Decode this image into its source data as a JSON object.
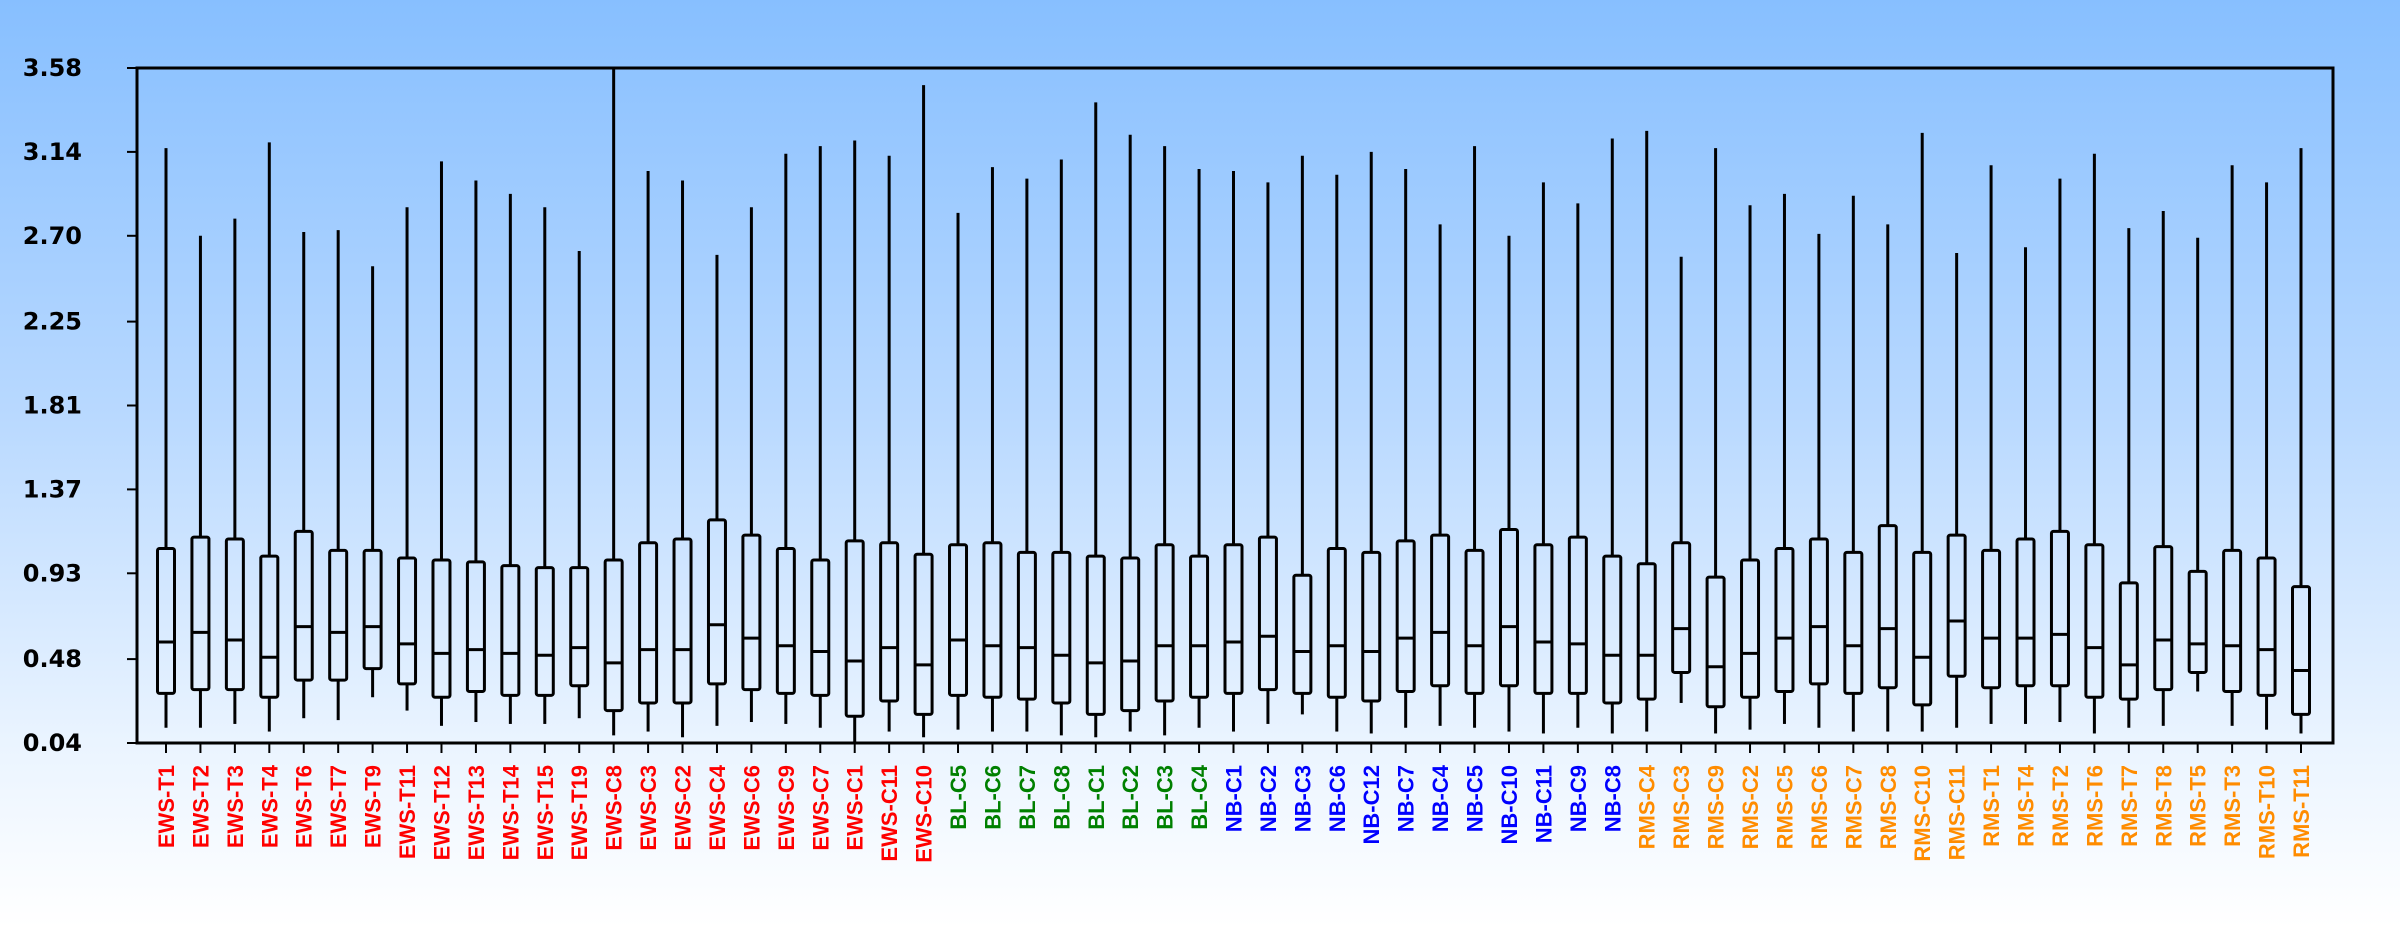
{
  "chart_data": {
    "type": "boxplot",
    "title": "",
    "xlabel": "",
    "ylabel": "",
    "ylim": [
      0.04,
      3.58
    ],
    "yticks": [
      "0.04",
      "0.48",
      "0.93",
      "1.37",
      "1.81",
      "2.25",
      "2.70",
      "3.14",
      "3.58"
    ],
    "grid": false,
    "group_colors": {
      "EWS": "#ff0000",
      "BL": "#008000",
      "NB": "#0000ff",
      "RMS": "#ff8c00"
    },
    "boxes": [
      {
        "label": "EWS-T1",
        "group": "EWS",
        "min": 0.12,
        "q1": 0.3,
        "median": 0.57,
        "q3": 1.06,
        "max": 3.16
      },
      {
        "label": "EWS-T2",
        "group": "EWS",
        "min": 0.12,
        "q1": 0.32,
        "median": 0.62,
        "q3": 1.12,
        "max": 2.7
      },
      {
        "label": "EWS-T3",
        "group": "EWS",
        "min": 0.14,
        "q1": 0.32,
        "median": 0.58,
        "q3": 1.11,
        "max": 2.79
      },
      {
        "label": "EWS-T4",
        "group": "EWS",
        "min": 0.1,
        "q1": 0.28,
        "median": 0.49,
        "q3": 1.02,
        "max": 3.19
      },
      {
        "label": "EWS-T6",
        "group": "EWS",
        "min": 0.17,
        "q1": 0.37,
        "median": 0.65,
        "q3": 1.15,
        "max": 2.72
      },
      {
        "label": "EWS-T7",
        "group": "EWS",
        "min": 0.16,
        "q1": 0.37,
        "median": 0.62,
        "q3": 1.05,
        "max": 2.73
      },
      {
        "label": "EWS-T9",
        "group": "EWS",
        "min": 0.28,
        "q1": 0.43,
        "median": 0.65,
        "q3": 1.05,
        "max": 2.54
      },
      {
        "label": "EWS-T11",
        "group": "EWS",
        "min": 0.21,
        "q1": 0.35,
        "median": 0.56,
        "q3": 1.01,
        "max": 2.85
      },
      {
        "label": "EWS-T12",
        "group": "EWS",
        "min": 0.13,
        "q1": 0.28,
        "median": 0.51,
        "q3": 1.0,
        "max": 3.09
      },
      {
        "label": "EWS-T13",
        "group": "EWS",
        "min": 0.15,
        "q1": 0.31,
        "median": 0.53,
        "q3": 0.99,
        "max": 2.99
      },
      {
        "label": "EWS-T14",
        "group": "EWS",
        "min": 0.14,
        "q1": 0.29,
        "median": 0.51,
        "q3": 0.97,
        "max": 2.92
      },
      {
        "label": "EWS-T15",
        "group": "EWS",
        "min": 0.14,
        "q1": 0.29,
        "median": 0.5,
        "q3": 0.96,
        "max": 2.85
      },
      {
        "label": "EWS-T19",
        "group": "EWS",
        "min": 0.17,
        "q1": 0.34,
        "median": 0.54,
        "q3": 0.96,
        "max": 2.62
      },
      {
        "label": "EWS-C8",
        "group": "EWS",
        "min": 0.08,
        "q1": 0.21,
        "median": 0.46,
        "q3": 1.0,
        "max": 3.58
      },
      {
        "label": "EWS-C3",
        "group": "EWS",
        "min": 0.1,
        "q1": 0.25,
        "median": 0.53,
        "q3": 1.09,
        "max": 3.04
      },
      {
        "label": "EWS-C2",
        "group": "EWS",
        "min": 0.07,
        "q1": 0.25,
        "median": 0.53,
        "q3": 1.11,
        "max": 2.99
      },
      {
        "label": "EWS-C4",
        "group": "EWS",
        "min": 0.13,
        "q1": 0.35,
        "median": 0.66,
        "q3": 1.21,
        "max": 2.6
      },
      {
        "label": "EWS-C6",
        "group": "EWS",
        "min": 0.15,
        "q1": 0.32,
        "median": 0.59,
        "q3": 1.13,
        "max": 2.85
      },
      {
        "label": "EWS-C9",
        "group": "EWS",
        "min": 0.14,
        "q1": 0.3,
        "median": 0.55,
        "q3": 1.06,
        "max": 3.13
      },
      {
        "label": "EWS-C7",
        "group": "EWS",
        "min": 0.12,
        "q1": 0.29,
        "median": 0.52,
        "q3": 1.0,
        "max": 3.17
      },
      {
        "label": "EWS-C1",
        "group": "EWS",
        "min": 0.04,
        "q1": 0.18,
        "median": 0.47,
        "q3": 1.1,
        "max": 3.2
      },
      {
        "label": "EWS-C11",
        "group": "EWS",
        "min": 0.1,
        "q1": 0.26,
        "median": 0.54,
        "q3": 1.09,
        "max": 3.12
      },
      {
        "label": "EWS-C10",
        "group": "EWS",
        "min": 0.07,
        "q1": 0.19,
        "median": 0.45,
        "q3": 1.03,
        "max": 3.49
      },
      {
        "label": "BL-C5",
        "group": "BL",
        "min": 0.11,
        "q1": 0.29,
        "median": 0.58,
        "q3": 1.08,
        "max": 2.82
      },
      {
        "label": "BL-C6",
        "group": "BL",
        "min": 0.1,
        "q1": 0.28,
        "median": 0.55,
        "q3": 1.09,
        "max": 3.06
      },
      {
        "label": "BL-C7",
        "group": "BL",
        "min": 0.1,
        "q1": 0.27,
        "median": 0.54,
        "q3": 1.04,
        "max": 3.0
      },
      {
        "label": "BL-C8",
        "group": "BL",
        "min": 0.08,
        "q1": 0.25,
        "median": 0.5,
        "q3": 1.04,
        "max": 3.1
      },
      {
        "label": "BL-C1",
        "group": "BL",
        "min": 0.07,
        "q1": 0.19,
        "median": 0.46,
        "q3": 1.02,
        "max": 3.4
      },
      {
        "label": "BL-C2",
        "group": "BL",
        "min": 0.1,
        "q1": 0.21,
        "median": 0.47,
        "q3": 1.01,
        "max": 3.23
      },
      {
        "label": "BL-C3",
        "group": "BL",
        "min": 0.08,
        "q1": 0.26,
        "median": 0.55,
        "q3": 1.08,
        "max": 3.17
      },
      {
        "label": "BL-C4",
        "group": "BL",
        "min": 0.12,
        "q1": 0.28,
        "median": 0.55,
        "q3": 1.02,
        "max": 3.05
      },
      {
        "label": "NB-C1",
        "group": "NB",
        "min": 0.1,
        "q1": 0.3,
        "median": 0.57,
        "q3": 1.08,
        "max": 3.04
      },
      {
        "label": "NB-C2",
        "group": "NB",
        "min": 0.14,
        "q1": 0.32,
        "median": 0.6,
        "q3": 1.12,
        "max": 2.98
      },
      {
        "label": "NB-C3",
        "group": "NB",
        "min": 0.19,
        "q1": 0.3,
        "median": 0.52,
        "q3": 0.92,
        "max": 3.12
      },
      {
        "label": "NB-C6",
        "group": "NB",
        "min": 0.1,
        "q1": 0.28,
        "median": 0.55,
        "q3": 1.06,
        "max": 3.02
      },
      {
        "label": "NB-C12",
        "group": "NB",
        "min": 0.09,
        "q1": 0.26,
        "median": 0.52,
        "q3": 1.04,
        "max": 3.14
      },
      {
        "label": "NB-C7",
        "group": "NB",
        "min": 0.12,
        "q1": 0.31,
        "median": 0.59,
        "q3": 1.1,
        "max": 3.05
      },
      {
        "label": "NB-C4",
        "group": "NB",
        "min": 0.13,
        "q1": 0.34,
        "median": 0.62,
        "q3": 1.13,
        "max": 2.76
      },
      {
        "label": "NB-C5",
        "group": "NB",
        "min": 0.12,
        "q1": 0.3,
        "median": 0.55,
        "q3": 1.05,
        "max": 3.17
      },
      {
        "label": "NB-C10",
        "group": "NB",
        "min": 0.1,
        "q1": 0.34,
        "median": 0.65,
        "q3": 1.16,
        "max": 2.7
      },
      {
        "label": "NB-C11",
        "group": "NB",
        "min": 0.09,
        "q1": 0.3,
        "median": 0.57,
        "q3": 1.08,
        "max": 2.98
      },
      {
        "label": "NB-C9",
        "group": "NB",
        "min": 0.12,
        "q1": 0.3,
        "median": 0.56,
        "q3": 1.12,
        "max": 2.87
      },
      {
        "label": "NB-C8",
        "group": "NB",
        "min": 0.09,
        "q1": 0.25,
        "median": 0.5,
        "q3": 1.02,
        "max": 3.21
      },
      {
        "label": "RMS-C4",
        "group": "RMS",
        "min": 0.1,
        "q1": 0.27,
        "median": 0.5,
        "q3": 0.98,
        "max": 3.25
      },
      {
        "label": "RMS-C3",
        "group": "RMS",
        "min": 0.25,
        "q1": 0.41,
        "median": 0.64,
        "q3": 1.09,
        "max": 2.59
      },
      {
        "label": "RMS-C9",
        "group": "RMS",
        "min": 0.09,
        "q1": 0.23,
        "median": 0.44,
        "q3": 0.91,
        "max": 3.16
      },
      {
        "label": "RMS-C2",
        "group": "RMS",
        "min": 0.11,
        "q1": 0.28,
        "median": 0.51,
        "q3": 1.0,
        "max": 2.86
      },
      {
        "label": "RMS-C5",
        "group": "RMS",
        "min": 0.14,
        "q1": 0.31,
        "median": 0.59,
        "q3": 1.06,
        "max": 2.92
      },
      {
        "label": "RMS-C6",
        "group": "RMS",
        "min": 0.12,
        "q1": 0.35,
        "median": 0.65,
        "q3": 1.11,
        "max": 2.71
      },
      {
        "label": "RMS-C7",
        "group": "RMS",
        "min": 0.1,
        "q1": 0.3,
        "median": 0.55,
        "q3": 1.04,
        "max": 2.91
      },
      {
        "label": "RMS-C8",
        "group": "RMS",
        "min": 0.1,
        "q1": 0.33,
        "median": 0.64,
        "q3": 1.18,
        "max": 2.76
      },
      {
        "label": "RMS-C10",
        "group": "RMS",
        "min": 0.1,
        "q1": 0.24,
        "median": 0.49,
        "q3": 1.04,
        "max": 3.24
      },
      {
        "label": "RMS-C11",
        "group": "RMS",
        "min": 0.12,
        "q1": 0.39,
        "median": 0.68,
        "q3": 1.13,
        "max": 2.61
      },
      {
        "label": "RMS-T1",
        "group": "RMS",
        "min": 0.14,
        "q1": 0.33,
        "median": 0.59,
        "q3": 1.05,
        "max": 3.07
      },
      {
        "label": "RMS-T4",
        "group": "RMS",
        "min": 0.14,
        "q1": 0.34,
        "median": 0.59,
        "q3": 1.11,
        "max": 2.64
      },
      {
        "label": "RMS-T2",
        "group": "RMS",
        "min": 0.15,
        "q1": 0.34,
        "median": 0.61,
        "q3": 1.15,
        "max": 3.0
      },
      {
        "label": "RMS-T6",
        "group": "RMS",
        "min": 0.09,
        "q1": 0.28,
        "median": 0.54,
        "q3": 1.08,
        "max": 3.13
      },
      {
        "label": "RMS-T7",
        "group": "RMS",
        "min": 0.12,
        "q1": 0.27,
        "median": 0.45,
        "q3": 0.88,
        "max": 2.74
      },
      {
        "label": "RMS-T8",
        "group": "RMS",
        "min": 0.13,
        "q1": 0.32,
        "median": 0.58,
        "q3": 1.07,
        "max": 2.83
      },
      {
        "label": "RMS-T5",
        "group": "RMS",
        "min": 0.31,
        "q1": 0.41,
        "median": 0.56,
        "q3": 0.94,
        "max": 2.69
      },
      {
        "label": "RMS-T3",
        "group": "RMS",
        "min": 0.13,
        "q1": 0.31,
        "median": 0.55,
        "q3": 1.05,
        "max": 3.07
      },
      {
        "label": "RMS-T10",
        "group": "RMS",
        "min": 0.11,
        "q1": 0.29,
        "median": 0.53,
        "q3": 1.01,
        "max": 2.98
      },
      {
        "label": "RMS-T11",
        "group": "RMS",
        "min": 0.09,
        "q1": 0.19,
        "median": 0.42,
        "q3": 0.86,
        "max": 3.16
      }
    ]
  }
}
